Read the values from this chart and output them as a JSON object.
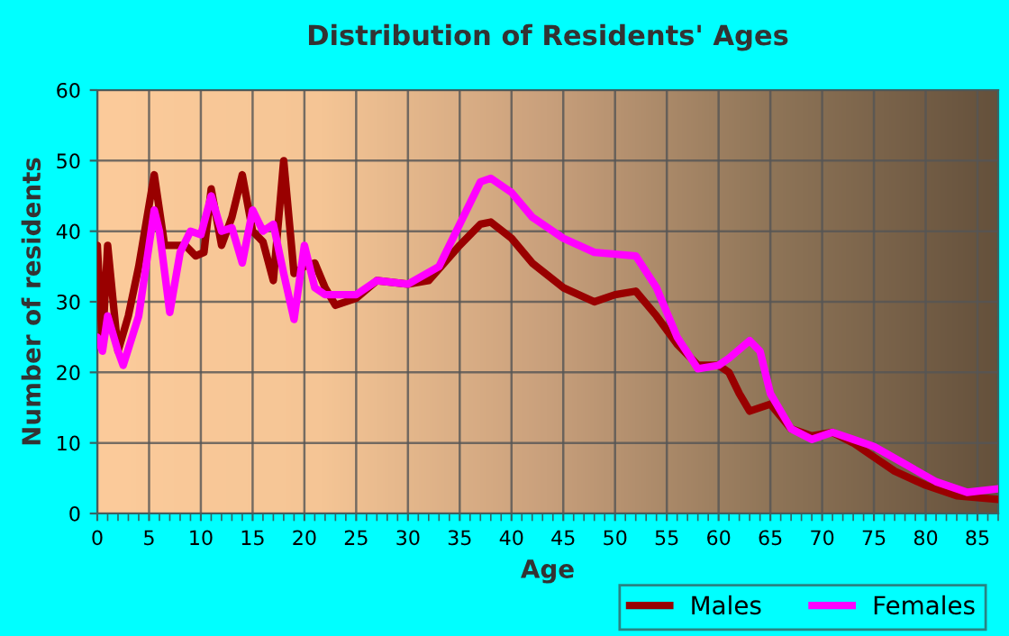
{
  "chart_data": {
    "type": "line",
    "title": "Distribution of Residents' Ages",
    "xlabel": "Age",
    "ylabel": "Number of residents",
    "xlim": [
      0,
      87
    ],
    "ylim": [
      0,
      60
    ],
    "xticks": [
      0,
      5,
      10,
      15,
      20,
      25,
      30,
      35,
      40,
      45,
      50,
      55,
      60,
      65,
      70,
      75,
      80,
      85
    ],
    "yticks": [
      0,
      10,
      20,
      30,
      40,
      50,
      60
    ],
    "grid": true,
    "legend": "bottom right",
    "marker": "none",
    "line_style": "solid",
    "series": [
      {
        "name": "Males",
        "color": "#990000",
        "x": [
          0,
          0.5,
          1,
          2,
          3,
          4,
          5.5,
          6.5,
          7.5,
          8.5,
          9.5,
          10.3,
          11,
          12,
          13,
          14,
          15,
          16,
          17,
          18,
          19,
          20,
          21,
          22,
          23,
          25,
          27,
          30,
          32,
          35,
          37,
          38,
          40,
          42,
          45,
          48,
          50,
          52,
          54,
          56,
          58,
          60,
          61,
          62,
          63,
          65,
          67,
          69,
          71,
          73,
          75,
          77,
          80,
          83,
          87
        ],
        "values": [
          38,
          24,
          38,
          23,
          28,
          35,
          48,
          38,
          38,
          38,
          36.5,
          37,
          46,
          38,
          42,
          48,
          40,
          38.5,
          33,
          50,
          34,
          35,
          35.5,
          32,
          29.5,
          30.5,
          33,
          32.5,
          33,
          38,
          41,
          41.3,
          39,
          35.5,
          32,
          30,
          31,
          31.5,
          28,
          24,
          21,
          21,
          20,
          17,
          14.5,
          15.5,
          12,
          11,
          11.5,
          10,
          8,
          6,
          4,
          2.5,
          2
        ]
      },
      {
        "name": "Females",
        "color": "#ff00ff",
        "x": [
          0,
          0.5,
          1,
          2,
          2.5,
          4,
          5.5,
          6,
          7,
          8,
          9,
          10,
          11,
          12,
          13,
          14,
          15,
          16,
          17,
          18,
          19,
          20,
          21,
          22,
          25,
          27,
          30,
          33,
          35,
          37,
          38,
          40,
          42,
          45,
          48,
          52,
          54,
          56,
          58,
          60,
          61,
          63,
          64,
          65,
          67,
          69,
          71,
          73,
          75,
          78,
          81,
          84,
          87
        ],
        "values": [
          25,
          23,
          28,
          23,
          21,
          28,
          43,
          40,
          28.5,
          37,
          40,
          39.5,
          45,
          40,
          40.5,
          35.5,
          43,
          40,
          41,
          34,
          27.5,
          38,
          32,
          31,
          31,
          33,
          32.5,
          35,
          41,
          47,
          47.5,
          45.5,
          42,
          39,
          37,
          36.5,
          32,
          25,
          20.5,
          21,
          22,
          24.5,
          23,
          17,
          12,
          10.5,
          11.5,
          10.5,
          9.5,
          7,
          4.5,
          3,
          3.5
        ]
      }
    ]
  }
}
